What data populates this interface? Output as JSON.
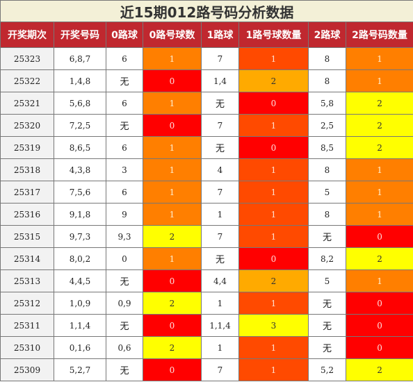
{
  "title": "近15期012路号码分析数据",
  "headers": [
    "开奖期次",
    "开奖号码",
    "0路球",
    "0路号球数",
    "1路球",
    "1路号球数量",
    "2路球",
    "2路号码数量"
  ],
  "rows": [
    {
      "period": "25323",
      "numbers": "6,8,7",
      "r0": "6",
      "r0c": "1",
      "r1": "7",
      "r1c": "1",
      "r2": "8",
      "r2c": "1"
    },
    {
      "period": "25322",
      "numbers": "1,4,8",
      "r0": "无",
      "r0c": "0",
      "r1": "1,4",
      "r1c": "2",
      "r2": "8",
      "r2c": "1"
    },
    {
      "period": "25321",
      "numbers": "5,6,8",
      "r0": "6",
      "r0c": "1",
      "r1": "无",
      "r1c": "0",
      "r2": "5,8",
      "r2c": "2"
    },
    {
      "period": "25320",
      "numbers": "7,2,5",
      "r0": "无",
      "r0c": "0",
      "r1": "7",
      "r1c": "1",
      "r2": "2,5",
      "r2c": "2"
    },
    {
      "period": "25319",
      "numbers": "8,6,5",
      "r0": "6",
      "r0c": "1",
      "r1": "无",
      "r1c": "0",
      "r2": "8,5",
      "r2c": "2"
    },
    {
      "period": "25318",
      "numbers": "4,3,8",
      "r0": "3",
      "r0c": "1",
      "r1": "4",
      "r1c": "1",
      "r2": "8",
      "r2c": "1"
    },
    {
      "period": "25317",
      "numbers": "7,5,6",
      "r0": "6",
      "r0c": "1",
      "r1": "7",
      "r1c": "1",
      "r2": "5",
      "r2c": "1"
    },
    {
      "period": "25316",
      "numbers": "9,1,8",
      "r0": "9",
      "r0c": "1",
      "r1": "1",
      "r1c": "1",
      "r2": "8",
      "r2c": "1"
    },
    {
      "period": "25315",
      "numbers": "9,7,3",
      "r0": "9,3",
      "r0c": "2",
      "r1": "7",
      "r1c": "1",
      "r2": "无",
      "r2c": "0"
    },
    {
      "period": "25314",
      "numbers": "8,0,2",
      "r0": "0",
      "r0c": "1",
      "r1": "无",
      "r1c": "0",
      "r2": "8,2",
      "r2c": "2"
    },
    {
      "period": "25313",
      "numbers": "4,4,5",
      "r0": "无",
      "r0c": "0",
      "r1": "4,4",
      "r1c": "2",
      "r2": "5",
      "r2c": "1"
    },
    {
      "period": "25312",
      "numbers": "1,0,9",
      "r0": "0,9",
      "r0c": "2",
      "r1": "1",
      "r1c": "1",
      "r2": "无",
      "r2c": "0"
    },
    {
      "period": "25311",
      "numbers": "1,1,4",
      "r0": "无",
      "r0c": "0",
      "r1": "1,1,4",
      "r1c": "3",
      "r2": "无",
      "r2c": "0"
    },
    {
      "period": "25310",
      "numbers": "0,1,6",
      "r0": "0,6",
      "r0c": "2",
      "r1": "1",
      "r1c": "1",
      "r2": "无",
      "r2c": "0"
    },
    {
      "period": "25309",
      "numbers": "5,2,7",
      "r0": "无",
      "r0c": "0",
      "r1": "7",
      "r1c": "1",
      "r2": "5,2",
      "r2c": "2"
    }
  ]
}
